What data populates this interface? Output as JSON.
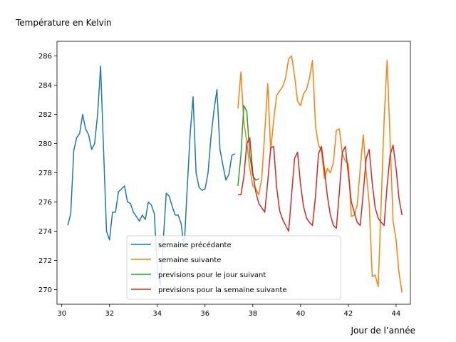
{
  "chart_data": {
    "type": "line",
    "title": "Température en Kelvin",
    "xlabel": "Jour de l’année",
    "ylabel": "",
    "xlim": [
      29.8,
      44.6
    ],
    "ylim": [
      269,
      287
    ],
    "xticks": [
      30,
      32,
      34,
      36,
      38,
      40,
      42,
      44
    ],
    "yticks": [
      270,
      272,
      274,
      276,
      278,
      280,
      282,
      284,
      286
    ],
    "grid": false,
    "legend_position": "lower center",
    "series": [
      {
        "name": "semaine précédante",
        "color": "#1f77b4",
        "x": [
          30.25,
          30.375,
          30.5,
          30.625,
          30.75,
          30.875,
          31.0,
          31.125,
          31.25,
          31.375,
          31.5,
          31.625,
          31.75,
          31.875,
          32.0,
          32.125,
          32.25,
          32.375,
          32.5,
          32.625,
          32.75,
          32.875,
          33.0,
          33.125,
          33.25,
          33.375,
          33.5,
          33.625,
          33.75,
          33.875,
          34.0,
          34.125,
          34.25,
          34.375,
          34.5,
          34.625,
          34.75,
          34.875,
          35.0,
          35.125,
          35.25,
          35.375,
          35.5,
          35.625,
          35.75,
          35.875,
          36.0,
          36.125,
          36.25,
          36.375,
          36.5,
          36.625,
          36.75,
          36.875,
          37.0,
          37.125,
          37.25
        ],
        "y": [
          274.4,
          275.2,
          279.5,
          280.4,
          280.7,
          282.0,
          281.0,
          280.6,
          279.6,
          280.0,
          282.0,
          285.3,
          279.5,
          274.0,
          273.4,
          275.3,
          275.3,
          276.7,
          276.9,
          277.1,
          276.0,
          275.9,
          275.3,
          275.0,
          274.7,
          275.1,
          274.8,
          276.0,
          275.8,
          275.2,
          271.3,
          270.3,
          273.3,
          276.6,
          276.4,
          275.7,
          275.1,
          275.1,
          274.5,
          272.9,
          276.8,
          280.6,
          283.2,
          278.0,
          277.0,
          276.8,
          276.9,
          278.0,
          280.5,
          282.3,
          283.7,
          279.6,
          278.5,
          277.5,
          277.9,
          279.2,
          279.3
        ]
      },
      {
        "name": "semaine suivante",
        "color": "#ff7f0e",
        "x": [
          37.375,
          37.5,
          37.625,
          37.75,
          37.875,
          38.0,
          38.125,
          38.25,
          38.375,
          38.5,
          38.625,
          38.75,
          38.875,
          39.0,
          39.125,
          39.25,
          39.375,
          39.5,
          39.625,
          39.75,
          39.875,
          40.0,
          40.125,
          40.25,
          40.375,
          40.5,
          40.625,
          40.75,
          40.875,
          41.0,
          41.125,
          41.25,
          41.375,
          41.5,
          41.625,
          41.75,
          41.875,
          42.0,
          42.125,
          42.25,
          42.375,
          42.5,
          42.625,
          42.75,
          42.875,
          43.0,
          43.125,
          43.25,
          43.375,
          43.5,
          43.625,
          43.75,
          43.875,
          44.0,
          44.125,
          44.25
        ],
        "y": [
          282.4,
          284.9,
          281.5,
          280.1,
          278.3,
          277.1,
          276.9,
          276.5,
          277.6,
          280.8,
          284.1,
          279.5,
          281.6,
          283.3,
          283.6,
          283.9,
          284.5,
          285.8,
          286.0,
          284.6,
          282.9,
          282.6,
          283.4,
          283.7,
          284.5,
          285.7,
          281.2,
          279.9,
          279.5,
          277.6,
          278.3,
          278.0,
          278.7,
          280.9,
          281.0,
          279.3,
          278.8,
          278.6,
          275.0,
          275.1,
          275.8,
          278.3,
          280.6,
          278.0,
          275.9,
          270.9,
          271.0,
          270.2,
          275.8,
          281.6,
          285.7,
          280.3,
          274.7,
          273.4,
          271.1,
          269.8
        ]
      },
      {
        "name": "previsions pour le jour suivant",
        "color": "#2ca02c",
        "x": [
          37.375,
          37.5,
          37.625,
          37.75,
          37.875,
          38.0,
          38.125,
          38.25
        ],
        "y": [
          277.1,
          279.2,
          282.6,
          282.2,
          279.2,
          277.8,
          277.5,
          277.6
        ]
      },
      {
        "name": "previsions pour la semaine suivante",
        "color": "#d62728",
        "x": [
          37.375,
          37.5,
          37.625,
          37.75,
          37.875,
          38.0,
          38.125,
          38.25,
          38.375,
          38.5,
          38.625,
          38.75,
          38.875,
          39.0,
          39.125,
          39.25,
          39.375,
          39.5,
          39.625,
          39.75,
          39.875,
          40.0,
          40.125,
          40.25,
          40.375,
          40.5,
          40.625,
          40.75,
          40.875,
          41.0,
          41.125,
          41.25,
          41.375,
          41.5,
          41.625,
          41.75,
          41.875,
          42.0,
          42.125,
          42.25,
          42.375,
          42.5,
          42.625,
          42.75,
          42.875,
          43.0,
          43.125,
          43.25,
          43.375,
          43.5,
          43.625,
          43.75,
          43.875,
          44.0,
          44.125,
          44.25
        ],
        "y": [
          276.5,
          276.5,
          277.7,
          280.0,
          280.4,
          278.0,
          276.7,
          275.9,
          275.6,
          275.3,
          277.4,
          279.7,
          279.8,
          277.0,
          275.4,
          274.8,
          274.4,
          274.0,
          276.5,
          279.0,
          279.4,
          277.2,
          275.7,
          274.9,
          274.6,
          274.4,
          276.4,
          279.3,
          279.8,
          278.2,
          276.4,
          275.1,
          274.4,
          274.2,
          276.7,
          279.4,
          279.8,
          277.9,
          276.0,
          275.3,
          274.6,
          274.4,
          276.6,
          279.0,
          279.6,
          277.3,
          275.6,
          274.9,
          274.6,
          274.4,
          277.1,
          279.2,
          279.9,
          278.3,
          276.2,
          275.1
        ]
      }
    ]
  }
}
